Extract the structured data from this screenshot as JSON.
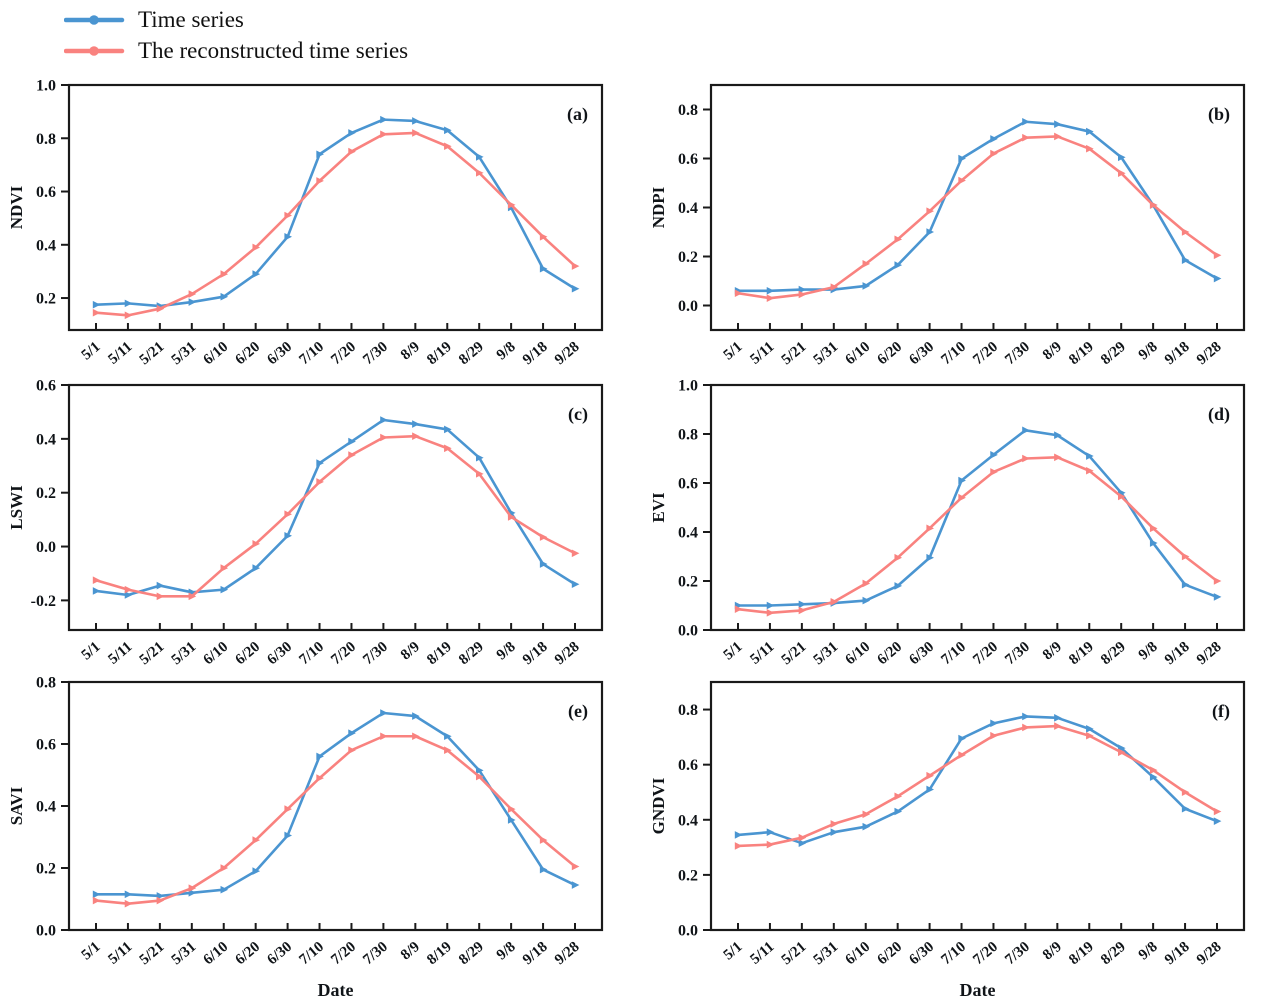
{
  "figure": {
    "legend": {
      "items": [
        {
          "label": "Time series",
          "color": "#4a95d1",
          "marker": "circle-on-line"
        },
        {
          "label": "The reconstructed time series",
          "color": "#f9827f",
          "marker": "circle-on-line"
        }
      ]
    },
    "xlabel": "Date",
    "axis_color": "#1a1a1a"
  },
  "chart_data": [
    {
      "type": "line",
      "panel_label": "(a)",
      "ylabel": "NDVI",
      "xlabel": "",
      "ylim": [
        0.08,
        1.0
      ],
      "yticks": [
        0.2,
        0.4,
        0.6,
        0.8,
        1.0
      ],
      "categories": [
        "5/1",
        "5/11",
        "5/21",
        "5/31",
        "6/10",
        "6/20",
        "6/30",
        "7/10",
        "7/20",
        "7/30",
        "8/9",
        "8/19",
        "8/29",
        "9/8",
        "9/18",
        "9/28"
      ],
      "series": [
        {
          "name": "Time series",
          "color": "#4a95d1",
          "values": [
            0.175,
            0.18,
            0.17,
            0.185,
            0.205,
            0.29,
            0.43,
            0.74,
            0.82,
            0.87,
            0.865,
            0.83,
            0.73,
            0.54,
            0.31,
            0.235
          ]
        },
        {
          "name": "The reconstructed time series",
          "color": "#f9827f",
          "values": [
            0.145,
            0.135,
            0.16,
            0.215,
            0.29,
            0.39,
            0.51,
            0.64,
            0.75,
            0.815,
            0.82,
            0.77,
            0.67,
            0.55,
            0.43,
            0.32
          ]
        }
      ]
    },
    {
      "type": "line",
      "panel_label": "(b)",
      "ylabel": "NDPI",
      "xlabel": "",
      "ylim": [
        -0.1,
        0.9
      ],
      "yticks": [
        0.0,
        0.2,
        0.4,
        0.6,
        0.8
      ],
      "categories": [
        "5/1",
        "5/11",
        "5/21",
        "5/31",
        "6/10",
        "6/20",
        "6/30",
        "7/10",
        "7/20",
        "7/30",
        "8/9",
        "8/19",
        "8/29",
        "9/8",
        "9/18",
        "9/28"
      ],
      "series": [
        {
          "name": "Time series",
          "color": "#4a95d1",
          "values": [
            0.06,
            0.06,
            0.065,
            0.065,
            0.08,
            0.165,
            0.3,
            0.6,
            0.68,
            0.75,
            0.74,
            0.71,
            0.605,
            0.41,
            0.185,
            0.11
          ]
        },
        {
          "name": "The reconstructed time series",
          "color": "#f9827f",
          "values": [
            0.05,
            0.03,
            0.045,
            0.075,
            0.17,
            0.27,
            0.385,
            0.51,
            0.62,
            0.685,
            0.69,
            0.64,
            0.54,
            0.41,
            0.3,
            0.205
          ]
        }
      ]
    },
    {
      "type": "line",
      "panel_label": "(c)",
      "ylabel": "LSWI",
      "xlabel": "",
      "ylim": [
        -0.31,
        0.6
      ],
      "yticks": [
        -0.2,
        0.0,
        0.2,
        0.4,
        0.6
      ],
      "categories": [
        "5/1",
        "5/11",
        "5/21",
        "5/31",
        "6/10",
        "6/20",
        "6/30",
        "7/10",
        "7/20",
        "7/30",
        "8/9",
        "8/19",
        "8/29",
        "9/8",
        "9/18",
        "9/28"
      ],
      "series": [
        {
          "name": "Time series",
          "color": "#4a95d1",
          "values": [
            -0.165,
            -0.18,
            -0.145,
            -0.17,
            -0.16,
            -0.08,
            0.04,
            0.31,
            0.39,
            0.47,
            0.455,
            0.435,
            0.33,
            0.125,
            -0.065,
            -0.14
          ]
        },
        {
          "name": "The reconstructed time series",
          "color": "#f9827f",
          "values": [
            -0.125,
            -0.16,
            -0.185,
            -0.185,
            -0.08,
            0.01,
            0.12,
            0.24,
            0.34,
            0.405,
            0.41,
            0.365,
            0.27,
            0.11,
            0.035,
            -0.025
          ]
        }
      ]
    },
    {
      "type": "line",
      "panel_label": "(d)",
      "ylabel": "EVI",
      "xlabel": "",
      "ylim": [
        0.0,
        1.0
      ],
      "yticks": [
        0.0,
        0.2,
        0.4,
        0.6,
        0.8,
        1.0
      ],
      "categories": [
        "5/1",
        "5/11",
        "5/21",
        "5/31",
        "6/10",
        "6/20",
        "6/30",
        "7/10",
        "7/20",
        "7/30",
        "8/9",
        "8/19",
        "8/29",
        "9/8",
        "9/18",
        "9/28"
      ],
      "series": [
        {
          "name": "Time series",
          "color": "#4a95d1",
          "values": [
            0.1,
            0.1,
            0.105,
            0.11,
            0.12,
            0.18,
            0.295,
            0.61,
            0.715,
            0.815,
            0.795,
            0.71,
            0.56,
            0.355,
            0.185,
            0.135
          ]
        },
        {
          "name": "The reconstructed time series",
          "color": "#f9827f",
          "values": [
            0.085,
            0.07,
            0.08,
            0.115,
            0.19,
            0.295,
            0.415,
            0.54,
            0.645,
            0.7,
            0.705,
            0.65,
            0.545,
            0.415,
            0.3,
            0.2
          ]
        }
      ]
    },
    {
      "type": "line",
      "panel_label": "(e)",
      "ylabel": "SAVI",
      "xlabel": "Date",
      "ylim": [
        0.0,
        0.8
      ],
      "yticks": [
        0.0,
        0.2,
        0.4,
        0.6,
        0.8
      ],
      "categories": [
        "5/1",
        "5/11",
        "5/21",
        "5/31",
        "6/10",
        "6/20",
        "6/30",
        "7/10",
        "7/20",
        "7/30",
        "8/9",
        "8/19",
        "8/29",
        "9/8",
        "9/18",
        "9/28"
      ],
      "series": [
        {
          "name": "Time series",
          "color": "#4a95d1",
          "values": [
            0.115,
            0.115,
            0.11,
            0.12,
            0.13,
            0.19,
            0.305,
            0.56,
            0.635,
            0.7,
            0.69,
            0.625,
            0.515,
            0.355,
            0.195,
            0.145
          ]
        },
        {
          "name": "The reconstructed time series",
          "color": "#f9827f",
          "values": [
            0.095,
            0.085,
            0.095,
            0.135,
            0.2,
            0.29,
            0.39,
            0.49,
            0.58,
            0.625,
            0.625,
            0.58,
            0.495,
            0.39,
            0.29,
            0.205
          ]
        }
      ]
    },
    {
      "type": "line",
      "panel_label": "(f)",
      "ylabel": "GNDVI",
      "xlabel": "Date",
      "ylim": [
        0.0,
        0.9
      ],
      "yticks": [
        0.0,
        0.2,
        0.4,
        0.6,
        0.8
      ],
      "categories": [
        "5/1",
        "5/11",
        "5/21",
        "5/31",
        "6/10",
        "6/20",
        "6/30",
        "7/10",
        "7/20",
        "7/30",
        "8/9",
        "8/19",
        "8/29",
        "9/8",
        "9/18",
        "9/28"
      ],
      "series": [
        {
          "name": "Time series",
          "color": "#4a95d1",
          "values": [
            0.345,
            0.355,
            0.315,
            0.355,
            0.375,
            0.43,
            0.51,
            0.695,
            0.75,
            0.775,
            0.77,
            0.73,
            0.66,
            0.555,
            0.44,
            0.395
          ]
        },
        {
          "name": "The reconstructed time series",
          "color": "#f9827f",
          "values": [
            0.305,
            0.31,
            0.335,
            0.385,
            0.42,
            0.485,
            0.56,
            0.635,
            0.705,
            0.735,
            0.74,
            0.705,
            0.645,
            0.58,
            0.5,
            0.43
          ]
        }
      ]
    }
  ]
}
